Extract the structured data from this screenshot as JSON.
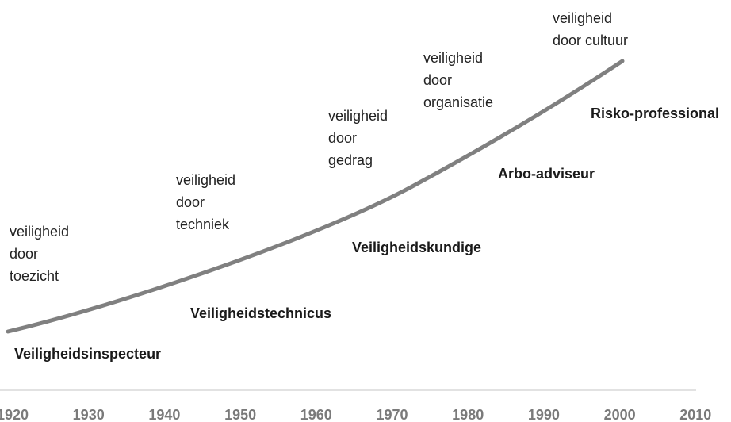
{
  "annotations": [
    {
      "lines": [
        "veiligheid",
        "door",
        "toezicht"
      ]
    },
    {
      "lines": [
        "veiligheid",
        "door",
        "techniek"
      ]
    },
    {
      "lines": [
        "veiligheid",
        "door",
        "gedrag"
      ]
    },
    {
      "lines": [
        "veiligheid",
        "door",
        "organisatie"
      ]
    },
    {
      "lines": [
        "veiligheid",
        "door cultuur"
      ]
    }
  ],
  "roles": [
    "Veiligheidsinspecteur",
    "Veiligheidstechnicus",
    "Veiligheidskundige",
    "Arbo-adviseur",
    "Risko-professional"
  ],
  "x_axis": [
    "1920",
    "1930",
    "1940",
    "1950",
    "1960",
    "1970",
    "1980",
    "1990",
    "2000",
    "2010"
  ]
}
